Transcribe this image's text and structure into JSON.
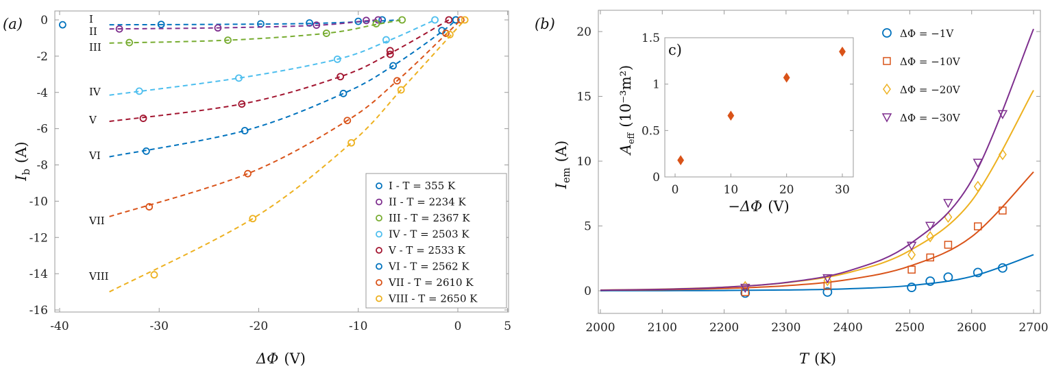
{
  "colors": {
    "blue": "#0072BD",
    "purple": "#7E2F8E",
    "green": "#77AC30",
    "lightblue": "#4DBEEE",
    "darkred": "#A2142F",
    "orange": "#D95319",
    "yellow": "#EDB120"
  },
  "chart_data": [
    {
      "panel_label": "(a)",
      "type": "scatter",
      "xlabel": {
        "symbol": "ΔΦ",
        "unit": "(V)"
      },
      "ylabel": {
        "symbol": "I",
        "sub": "b",
        "unit": "(A)"
      },
      "xlim": [
        -40,
        5
      ],
      "ylim": [
        -16,
        0.5
      ],
      "xticks": [
        "-40",
        "-30",
        "-20",
        "-10",
        "0",
        "5"
      ],
      "yticks": [
        "0",
        "-2",
        "-4",
        "-6",
        "-8",
        "-10",
        "-12",
        "-14",
        "-16"
      ],
      "grid": false,
      "legend_position": "bottom-right",
      "series": [
        {
          "name": "I - T = 355 K",
          "curve_label": "I",
          "color": "blue",
          "points": [
            [
              -39.7,
              -0.27
            ],
            [
              -29.8,
              -0.25
            ],
            [
              -19.8,
              -0.22
            ],
            [
              -14.9,
              -0.17
            ],
            [
              -10,
              -0.08
            ],
            [
              -7.6,
              0
            ],
            [
              -0.2,
              0
            ]
          ],
          "fit": [
            [
              -35,
              -0.27
            ],
            [
              -25,
              -0.25
            ],
            [
              -15,
              -0.2
            ],
            [
              -8,
              -0.06
            ],
            [
              -6,
              0
            ]
          ]
        },
        {
          "name": "II - T = 2234 K",
          "curve_label": "II",
          "color": "purple",
          "points": [
            [
              -34,
              -0.5
            ],
            [
              -24.1,
              -0.44
            ],
            [
              -14.2,
              -0.29
            ],
            [
              -9.2,
              -0.03
            ],
            [
              -8,
              0
            ]
          ],
          "fit": [
            [
              -35,
              -0.5
            ],
            [
              -24.1,
              -0.44
            ],
            [
              -14.2,
              -0.3
            ],
            [
              -9.2,
              -0.05
            ],
            [
              -8,
              0
            ]
          ]
        },
        {
          "name": "III - T = 2367 K",
          "curve_label": "III",
          "color": "green",
          "points": [
            [
              -33,
              -1.25
            ],
            [
              -23.1,
              -1.12
            ],
            [
              -13.2,
              -0.74
            ],
            [
              -8.2,
              -0.21
            ],
            [
              -5.6,
              0
            ]
          ],
          "fit": [
            [
              -35,
              -1.28
            ],
            [
              -23.1,
              -1.12
            ],
            [
              -13.2,
              -0.74
            ],
            [
              -8.2,
              -0.25
            ],
            [
              -5.6,
              0
            ]
          ]
        },
        {
          "name": "IV - T = 2503 K",
          "curve_label": "IV",
          "color": "lightblue",
          "points": [
            [
              -32,
              -3.93
            ],
            [
              -22,
              -3.21
            ],
            [
              -12.1,
              -2.17
            ],
            [
              -7.2,
              -1.1
            ],
            [
              -2.3,
              0
            ]
          ],
          "fit": [
            [
              -35,
              -4.15
            ],
            [
              -22,
              -3.21
            ],
            [
              -12.1,
              -2.17
            ],
            [
              -7.2,
              -1.2
            ],
            [
              -2.3,
              0
            ]
          ]
        },
        {
          "name": "V - T = 2533 K",
          "curve_label": "V",
          "color": "darkred",
          "points": [
            [
              -31.6,
              -5.43
            ],
            [
              -21.7,
              -4.64
            ],
            [
              -11.8,
              -3.13
            ],
            [
              -6.8,
              -1.9
            ],
            [
              -6.8,
              -1.7
            ],
            [
              -0.9,
              0
            ]
          ],
          "fit": [
            [
              -35,
              -5.6
            ],
            [
              -21.7,
              -4.64
            ],
            [
              -11.8,
              -3.13
            ],
            [
              -6.8,
              -1.85
            ],
            [
              -0.9,
              0
            ]
          ]
        },
        {
          "name": "VI - T = 2562 K",
          "curve_label": "VI",
          "color": "blue",
          "points": [
            [
              -31.3,
              -7.24
            ],
            [
              -21.4,
              -6.11
            ],
            [
              -11.5,
              -4.06
            ],
            [
              -6.5,
              -2.53
            ],
            [
              -1.6,
              -0.59
            ],
            [
              -0.2,
              0
            ]
          ],
          "fit": [
            [
              -35,
              -7.55
            ],
            [
              -21.4,
              -6.11
            ],
            [
              -11.5,
              -4.06
            ],
            [
              -6.5,
              -2.53
            ],
            [
              -1.6,
              -0.65
            ],
            [
              -0.2,
              0
            ]
          ]
        },
        {
          "name": "VII - T = 2610 K",
          "curve_label": "VII",
          "color": "orange",
          "points": [
            [
              -31,
              -10.31
            ],
            [
              -21.1,
              -8.48
            ],
            [
              -11.1,
              -5.55
            ],
            [
              -6.1,
              -3.36
            ],
            [
              -1.2,
              -0.74
            ],
            [
              0.3,
              0
            ]
          ],
          "fit": [
            [
              -35,
              -10.85
            ],
            [
              -21.1,
              -8.48
            ],
            [
              -11.1,
              -5.55
            ],
            [
              -6.1,
              -3.36
            ],
            [
              -1.2,
              -0.8
            ],
            [
              0.3,
              0
            ]
          ]
        },
        {
          "name": "VIII - T = 2650 K",
          "curve_label": "VIII",
          "color": "yellow",
          "points": [
            [
              -30.5,
              -14.06
            ],
            [
              -20.6,
              -10.96
            ],
            [
              -10.7,
              -6.78
            ],
            [
              -5.7,
              -3.86
            ],
            [
              -0.8,
              -0.81
            ],
            [
              0.7,
              0
            ]
          ],
          "fit": [
            [
              -35,
              -15.0
            ],
            [
              -20.6,
              -10.96
            ],
            [
              -10.7,
              -6.78
            ],
            [
              -5.7,
              -3.86
            ],
            [
              -0.8,
              -0.9
            ],
            [
              0.7,
              0
            ]
          ]
        }
      ]
    },
    {
      "panel_label": "(b)",
      "type": "scatter",
      "xlabel": {
        "symbol": "T",
        "unit": "(K)"
      },
      "ylabel": {
        "symbol": "I",
        "sub": "em",
        "unit": "(A)"
      },
      "xlim": [
        2000,
        2700
      ],
      "ylim": [
        -1.75,
        21.6
      ],
      "xticks": [
        "2000",
        "2100",
        "2200",
        "2300",
        "2400",
        "2500",
        "2600",
        "2700"
      ],
      "yticks": [
        "0",
        "5",
        "10",
        "15",
        "20"
      ],
      "grid": false,
      "legend_position": "top-right",
      "x": [
        2234,
        2367,
        2503,
        2533,
        2562,
        2610,
        2650
      ],
      "fit_x": [
        2000,
        2100,
        2200,
        2300,
        2400,
        2500,
        2600,
        2700
      ],
      "series": [
        {
          "name": "ΔΦ = −1V",
          "marker": "circle",
          "color": "blue",
          "values": [
            -0.18,
            -0.1,
            0.26,
            0.74,
            1.05,
            1.41,
            1.76
          ],
          "fit": [
            0.003,
            0.008,
            0.022,
            0.058,
            0.152,
            0.4,
            1.1,
            2.78
          ]
        },
        {
          "name": "ΔΦ = −10V",
          "marker": "square",
          "color": "orange",
          "values": [
            -0.1,
            0.39,
            1.63,
            2.57,
            3.55,
            4.97,
            6.19
          ],
          "fit": [
            0.04,
            0.08,
            0.18,
            0.39,
            0.86,
            1.9,
            4.17,
            9.17
          ]
        },
        {
          "name": "ΔΦ = −20V",
          "marker": "diamond",
          "color": "yellow",
          "values": [
            0.32,
            0.79,
            2.78,
            4.17,
            5.68,
            8.05,
            10.51
          ],
          "fit": [
            0.056,
            0.125,
            0.28,
            0.62,
            1.39,
            3.1,
            6.94,
            15.47
          ]
        },
        {
          "name": "ΔΦ = −30V",
          "marker": "triangle-down",
          "color": "purple",
          "values": [
            0.23,
            0.97,
            3.48,
            5.01,
            6.78,
            9.88,
            13.63
          ],
          "fit": [
            0.048,
            0.11,
            0.27,
            0.64,
            1.52,
            3.6,
            8.52,
            20.2
          ]
        }
      ]
    },
    {
      "panel_label": "c)",
      "type": "scatter",
      "inset_of": "(b)",
      "xlabel": {
        "symbol": "−ΔΦ",
        "unit": "(V)"
      },
      "ylabel": {
        "symbol": "A",
        "sub": "eff",
        "unit": "(10⁻³m²)"
      },
      "xlim": [
        -1.8,
        32
      ],
      "ylim": [
        0,
        1.5
      ],
      "xticks": [
        "0",
        "10",
        "20",
        "30"
      ],
      "yticks": [
        "0",
        "0.5",
        "1",
        "1.5"
      ],
      "marker": "filled-diamond",
      "color": "orange",
      "x": [
        1,
        10,
        20,
        30
      ],
      "values": [
        0.18,
        0.66,
        1.07,
        1.35
      ]
    }
  ]
}
